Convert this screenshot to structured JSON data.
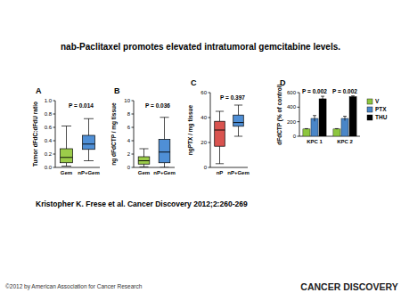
{
  "page": {
    "title": "nab-Paclitaxel promotes elevated intratumoral gemcitabine levels.",
    "citation": "Kristopher K. Frese et al. Cancer Discovery 2012;2:260-269",
    "copyright": "©2012 by American Association for Cancer Research",
    "logo": "CANCER DISCOVERY"
  },
  "chart_data": [
    {
      "type": "box",
      "panel": "A",
      "y_label": "Tumor dFdC:dFdU ratio",
      "categories": [
        "Gem",
        "nP+Gem"
      ],
      "colors": [
        "#9ccc4a",
        "#4f8fd6"
      ],
      "min": [
        0.02,
        0.1
      ],
      "q1": [
        0.07,
        0.27
      ],
      "median": [
        0.15,
        0.35
      ],
      "q3": [
        0.28,
        0.48
      ],
      "max": [
        0.62,
        0.73
      ],
      "ylim": [
        0,
        1
      ],
      "yticks": [
        {
          "value": 0,
          "label": "0.0"
        },
        0.2,
        0.4,
        0.6,
        0.8,
        {
          "value": 1,
          "label": "1.0"
        }
      ],
      "annotations": [
        "P = 0.014"
      ]
    },
    {
      "type": "box",
      "panel": "B",
      "y_label": "ng dFdCTP / mg tissue",
      "categories": [
        "Gem",
        "nP+Gem"
      ],
      "colors": [
        "#9ccc4a",
        "#4f8fd6"
      ],
      "min": [
        0.1,
        0
      ],
      "q1": [
        0.5,
        0.7
      ],
      "median": [
        1.0,
        2.3
      ],
      "q3": [
        1.6,
        4.2
      ],
      "max": [
        2.8,
        7.5
      ],
      "ylim": [
        0,
        10
      ],
      "yticks": [
        0,
        2,
        4,
        6,
        8,
        10
      ],
      "annotations": [
        "P = 0.036"
      ]
    },
    {
      "type": "box",
      "panel": "C",
      "y_label": "ngPTX / mg tissue",
      "categories": [
        "nP",
        "nP+Gem"
      ],
      "colors": [
        "#d9534f",
        "#4f8fd6"
      ],
      "min": [
        3,
        25
      ],
      "q1": [
        17,
        33
      ],
      "median": [
        30,
        36
      ],
      "q3": [
        37,
        42
      ],
      "max": [
        45,
        50
      ],
      "ylim": [
        0,
        60
      ],
      "yticks": [
        0,
        20,
        40,
        60
      ],
      "annotations": [
        "P = 0.397"
      ]
    },
    {
      "type": "bar",
      "panel": "D",
      "y_label": "dFdCTP (% of control)",
      "categories": [
        "KPC 1",
        "KPC 2"
      ],
      "series": [
        {
          "name": "V",
          "color": "#8dc63f",
          "values": [
            100,
            100
          ],
          "errors": [
            5,
            5
          ]
        },
        {
          "name": "PTX",
          "color": "#4a86c8",
          "values": [
            245,
            245
          ],
          "errors": [
            40,
            30
          ]
        },
        {
          "name": "THU",
          "color": "#000000",
          "values": [
            515,
            545
          ],
          "errors": [
            35,
            10
          ]
        }
      ],
      "ylim": [
        0,
        600
      ],
      "yticks": [
        0,
        200,
        400,
        600
      ],
      "legend": "right",
      "annotations": [
        "P = 0.002",
        "P = 0.002"
      ]
    }
  ]
}
